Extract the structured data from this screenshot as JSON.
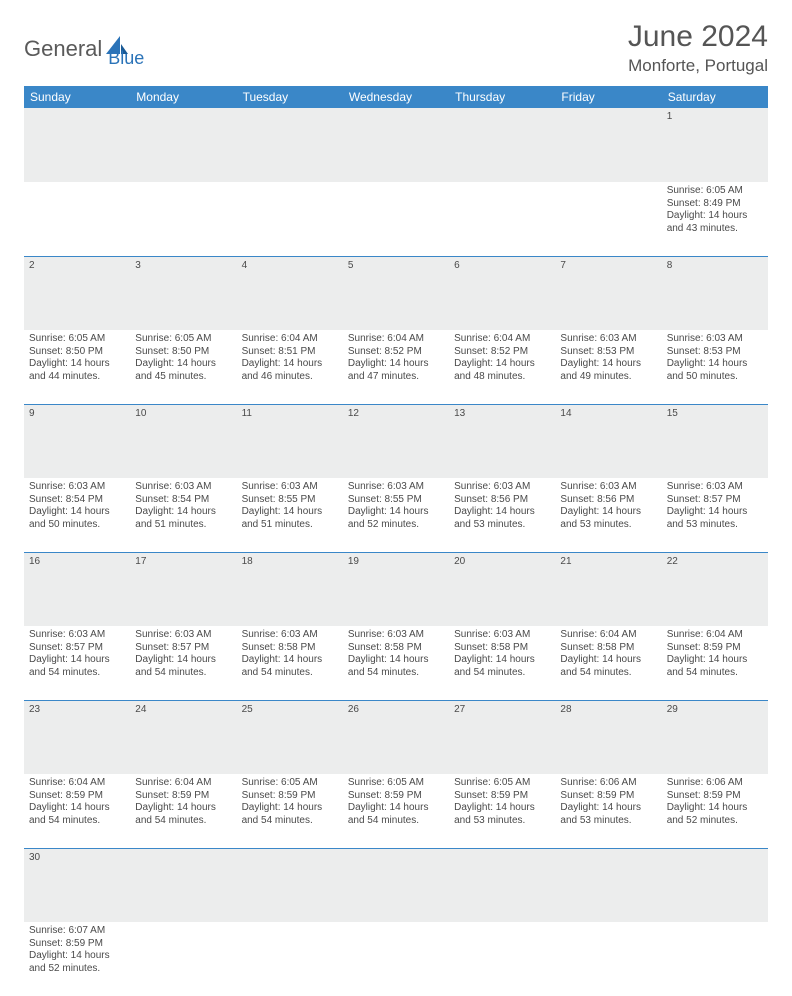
{
  "brand": {
    "name1": "General",
    "name2": "Blue"
  },
  "title": "June 2024",
  "location": "Monforte, Portugal",
  "colors": {
    "header_bg": "#3a87c8",
    "daynum_bg": "#eceded",
    "rule": "#3a87c8",
    "text": "#4a4a4a",
    "title": "#555555"
  },
  "columns": [
    "Sunday",
    "Monday",
    "Tuesday",
    "Wednesday",
    "Thursday",
    "Friday",
    "Saturday"
  ],
  "weeks": [
    {
      "nums": [
        "",
        "",
        "",
        "",
        "",
        "",
        "1"
      ],
      "cells": [
        null,
        null,
        null,
        null,
        null,
        null,
        {
          "sr": "Sunrise: 6:05 AM",
          "ss": "Sunset: 8:49 PM",
          "d1": "Daylight: 14 hours",
          "d2": "and 43 minutes."
        }
      ]
    },
    {
      "nums": [
        "2",
        "3",
        "4",
        "5",
        "6",
        "7",
        "8"
      ],
      "cells": [
        {
          "sr": "Sunrise: 6:05 AM",
          "ss": "Sunset: 8:50 PM",
          "d1": "Daylight: 14 hours",
          "d2": "and 44 minutes."
        },
        {
          "sr": "Sunrise: 6:05 AM",
          "ss": "Sunset: 8:50 PM",
          "d1": "Daylight: 14 hours",
          "d2": "and 45 minutes."
        },
        {
          "sr": "Sunrise: 6:04 AM",
          "ss": "Sunset: 8:51 PM",
          "d1": "Daylight: 14 hours",
          "d2": "and 46 minutes."
        },
        {
          "sr": "Sunrise: 6:04 AM",
          "ss": "Sunset: 8:52 PM",
          "d1": "Daylight: 14 hours",
          "d2": "and 47 minutes."
        },
        {
          "sr": "Sunrise: 6:04 AM",
          "ss": "Sunset: 8:52 PM",
          "d1": "Daylight: 14 hours",
          "d2": "and 48 minutes."
        },
        {
          "sr": "Sunrise: 6:03 AM",
          "ss": "Sunset: 8:53 PM",
          "d1": "Daylight: 14 hours",
          "d2": "and 49 minutes."
        },
        {
          "sr": "Sunrise: 6:03 AM",
          "ss": "Sunset: 8:53 PM",
          "d1": "Daylight: 14 hours",
          "d2": "and 50 minutes."
        }
      ]
    },
    {
      "nums": [
        "9",
        "10",
        "11",
        "12",
        "13",
        "14",
        "15"
      ],
      "cells": [
        {
          "sr": "Sunrise: 6:03 AM",
          "ss": "Sunset: 8:54 PM",
          "d1": "Daylight: 14 hours",
          "d2": "and 50 minutes."
        },
        {
          "sr": "Sunrise: 6:03 AM",
          "ss": "Sunset: 8:54 PM",
          "d1": "Daylight: 14 hours",
          "d2": "and 51 minutes."
        },
        {
          "sr": "Sunrise: 6:03 AM",
          "ss": "Sunset: 8:55 PM",
          "d1": "Daylight: 14 hours",
          "d2": "and 51 minutes."
        },
        {
          "sr": "Sunrise: 6:03 AM",
          "ss": "Sunset: 8:55 PM",
          "d1": "Daylight: 14 hours",
          "d2": "and 52 minutes."
        },
        {
          "sr": "Sunrise: 6:03 AM",
          "ss": "Sunset: 8:56 PM",
          "d1": "Daylight: 14 hours",
          "d2": "and 53 minutes."
        },
        {
          "sr": "Sunrise: 6:03 AM",
          "ss": "Sunset: 8:56 PM",
          "d1": "Daylight: 14 hours",
          "d2": "and 53 minutes."
        },
        {
          "sr": "Sunrise: 6:03 AM",
          "ss": "Sunset: 8:57 PM",
          "d1": "Daylight: 14 hours",
          "d2": "and 53 minutes."
        }
      ]
    },
    {
      "nums": [
        "16",
        "17",
        "18",
        "19",
        "20",
        "21",
        "22"
      ],
      "cells": [
        {
          "sr": "Sunrise: 6:03 AM",
          "ss": "Sunset: 8:57 PM",
          "d1": "Daylight: 14 hours",
          "d2": "and 54 minutes."
        },
        {
          "sr": "Sunrise: 6:03 AM",
          "ss": "Sunset: 8:57 PM",
          "d1": "Daylight: 14 hours",
          "d2": "and 54 minutes."
        },
        {
          "sr": "Sunrise: 6:03 AM",
          "ss": "Sunset: 8:58 PM",
          "d1": "Daylight: 14 hours",
          "d2": "and 54 minutes."
        },
        {
          "sr": "Sunrise: 6:03 AM",
          "ss": "Sunset: 8:58 PM",
          "d1": "Daylight: 14 hours",
          "d2": "and 54 minutes."
        },
        {
          "sr": "Sunrise: 6:03 AM",
          "ss": "Sunset: 8:58 PM",
          "d1": "Daylight: 14 hours",
          "d2": "and 54 minutes."
        },
        {
          "sr": "Sunrise: 6:04 AM",
          "ss": "Sunset: 8:58 PM",
          "d1": "Daylight: 14 hours",
          "d2": "and 54 minutes."
        },
        {
          "sr": "Sunrise: 6:04 AM",
          "ss": "Sunset: 8:59 PM",
          "d1": "Daylight: 14 hours",
          "d2": "and 54 minutes."
        }
      ]
    },
    {
      "nums": [
        "23",
        "24",
        "25",
        "26",
        "27",
        "28",
        "29"
      ],
      "cells": [
        {
          "sr": "Sunrise: 6:04 AM",
          "ss": "Sunset: 8:59 PM",
          "d1": "Daylight: 14 hours",
          "d2": "and 54 minutes."
        },
        {
          "sr": "Sunrise: 6:04 AM",
          "ss": "Sunset: 8:59 PM",
          "d1": "Daylight: 14 hours",
          "d2": "and 54 minutes."
        },
        {
          "sr": "Sunrise: 6:05 AM",
          "ss": "Sunset: 8:59 PM",
          "d1": "Daylight: 14 hours",
          "d2": "and 54 minutes."
        },
        {
          "sr": "Sunrise: 6:05 AM",
          "ss": "Sunset: 8:59 PM",
          "d1": "Daylight: 14 hours",
          "d2": "and 54 minutes."
        },
        {
          "sr": "Sunrise: 6:05 AM",
          "ss": "Sunset: 8:59 PM",
          "d1": "Daylight: 14 hours",
          "d2": "and 53 minutes."
        },
        {
          "sr": "Sunrise: 6:06 AM",
          "ss": "Sunset: 8:59 PM",
          "d1": "Daylight: 14 hours",
          "d2": "and 53 minutes."
        },
        {
          "sr": "Sunrise: 6:06 AM",
          "ss": "Sunset: 8:59 PM",
          "d1": "Daylight: 14 hours",
          "d2": "and 52 minutes."
        }
      ]
    },
    {
      "nums": [
        "30",
        "",
        "",
        "",
        "",
        "",
        ""
      ],
      "cells": [
        {
          "sr": "Sunrise: 6:07 AM",
          "ss": "Sunset: 8:59 PM",
          "d1": "Daylight: 14 hours",
          "d2": "and 52 minutes."
        },
        null,
        null,
        null,
        null,
        null,
        null
      ]
    }
  ]
}
